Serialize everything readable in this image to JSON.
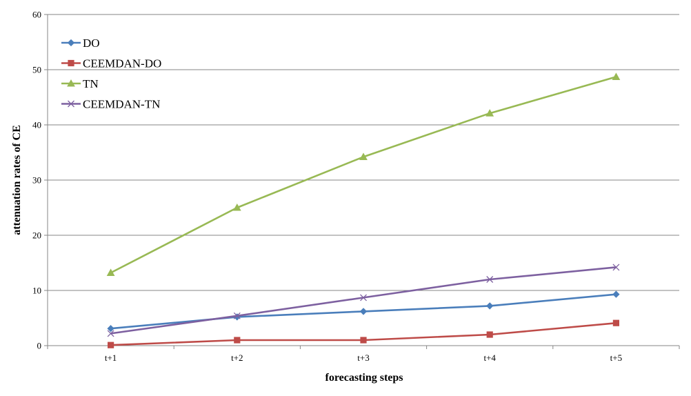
{
  "chart_data": {
    "type": "line",
    "title": "",
    "xlabel": "forecasting steps",
    "ylabel": "attenuation rates of CE",
    "categories": [
      "t+1",
      "t+2",
      "t+3",
      "t+4",
      "t+5"
    ],
    "ylim": [
      0,
      60
    ],
    "yticks": [
      0,
      10,
      20,
      30,
      40,
      50,
      60
    ],
    "grid": "horizontal",
    "legend_position": "top-left",
    "series": [
      {
        "name": "DO",
        "color": "#4a7ebb",
        "marker": "diamond",
        "values": [
          3.1,
          5.2,
          6.2,
          7.2,
          9.3
        ]
      },
      {
        "name": "CEEMDAN-DO",
        "color": "#be4b48",
        "marker": "square",
        "values": [
          0.1,
          1.0,
          1.0,
          2.0,
          4.1
        ]
      },
      {
        "name": "TN",
        "color": "#98b954",
        "marker": "triangle",
        "values": [
          13.2,
          25.0,
          34.2,
          42.1,
          48.7
        ]
      },
      {
        "name": "CEEMDAN-TN",
        "color": "#7d60a0",
        "marker": "x",
        "values": [
          2.2,
          5.4,
          8.7,
          12.0,
          14.2
        ]
      }
    ]
  }
}
